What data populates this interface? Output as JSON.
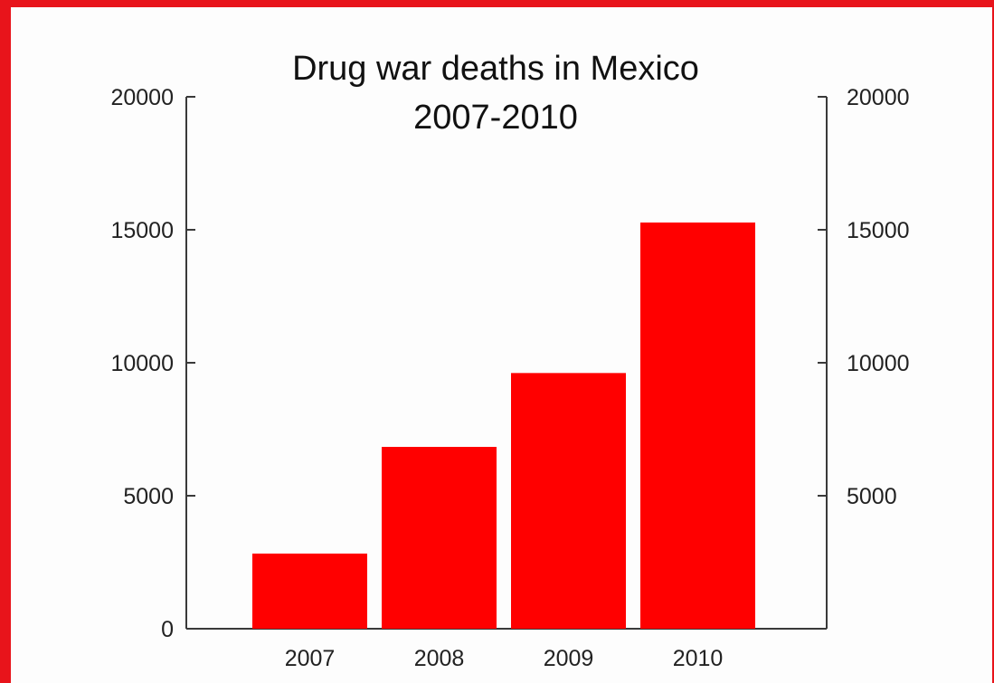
{
  "colors": {
    "bar": "#ff0000",
    "frame": "#e8141b",
    "axis": "#3a3a3a",
    "text": "#111111"
  },
  "chart_data": {
    "type": "bar",
    "title": [
      "Drug war deaths in Mexico",
      "2007-2010"
    ],
    "xlabel": "",
    "ylabel": "",
    "categories": [
      "2007",
      "2008",
      "2009",
      "2010"
    ],
    "values": [
      2826,
      6837,
      9614,
      15273
    ],
    "ylim": [
      0,
      20000
    ],
    "left_axis_ticks": [
      0,
      5000,
      10000,
      15000,
      20000
    ],
    "right_axis_ticks": [
      5000,
      10000,
      15000,
      20000
    ],
    "grid": false,
    "legend": "none"
  }
}
